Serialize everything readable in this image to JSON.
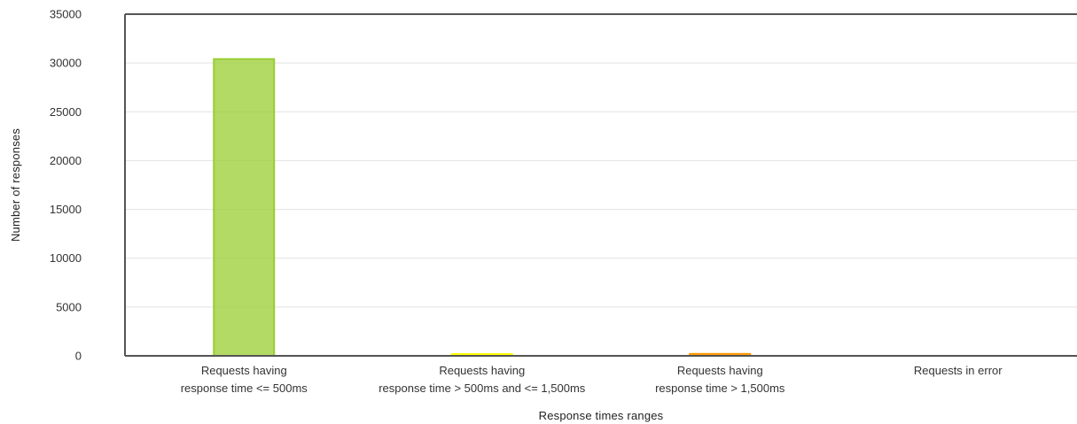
{
  "chart_data": {
    "type": "bar",
    "title": "",
    "xlabel": "Response times ranges",
    "ylabel": "Number of responses",
    "ylim": [
      0,
      35000
    ],
    "yticks": [
      0,
      5000,
      10000,
      15000,
      20000,
      25000,
      30000,
      35000
    ],
    "grid": true,
    "categories": [
      [
        "Requests having",
        "response time <= 500ms"
      ],
      [
        "Requests having",
        "response time > 500ms and <= 1,500ms"
      ],
      [
        "Requests having",
        "response time > 1,500ms"
      ],
      [
        "Requests in error"
      ]
    ],
    "values": [
      30400,
      150,
      200,
      0
    ],
    "colors": [
      "#9ACD32",
      "#FFFF00",
      "#FF9900",
      "#FF0000"
    ]
  }
}
